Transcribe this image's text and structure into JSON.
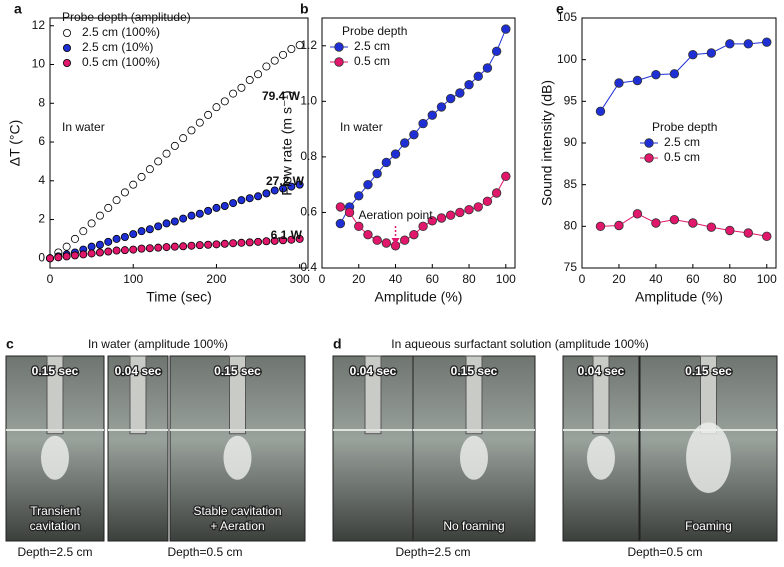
{
  "chart_data": [
    {
      "type": "scatter",
      "label": "a",
      "xlabel": "Time (sec)",
      "ylabel": "ΔT (°C)",
      "legend_title": "Probe depth (amplitude)",
      "legend": "upper left",
      "line": false,
      "xlim": [
        0,
        310
      ],
      "ylim": [
        -0.5,
        12.4
      ],
      "xticks": [
        0,
        100,
        200,
        300
      ],
      "yticks": [
        0,
        2,
        4,
        6,
        8,
        10,
        12
      ],
      "annotations": [
        "In water",
        "79.4 W",
        "27.2 W",
        "6.1 W"
      ],
      "x": [
        0,
        10,
        20,
        30,
        40,
        50,
        60,
        70,
        80,
        90,
        100,
        110,
        120,
        130,
        140,
        150,
        160,
        170,
        180,
        190,
        200,
        210,
        220,
        230,
        240,
        250,
        260,
        270,
        280,
        290,
        300
      ],
      "series": [
        {
          "name": "2.5 cm (100%)",
          "color": "#000000",
          "fill": "#ffffff",
          "values": [
            0,
            0.3,
            0.6,
            1.0,
            1.4,
            1.8,
            2.2,
            2.6,
            3.0,
            3.4,
            3.8,
            4.2,
            4.6,
            5.0,
            5.4,
            5.8,
            6.2,
            6.6,
            7.0,
            7.4,
            7.8,
            8.1,
            8.5,
            8.8,
            9.2,
            9.5,
            9.9,
            10.2,
            10.5,
            10.8,
            11.0
          ]
        },
        {
          "name": "2.5 cm (10%)",
          "color": "#000000",
          "fill": "#1f2fd6",
          "values": [
            0,
            0.1,
            0.2,
            0.3,
            0.45,
            0.6,
            0.7,
            0.85,
            1.0,
            1.1,
            1.25,
            1.4,
            1.5,
            1.65,
            1.8,
            1.9,
            2.05,
            2.2,
            2.3,
            2.45,
            2.6,
            2.7,
            2.85,
            3.0,
            3.1,
            3.2,
            3.35,
            3.5,
            3.6,
            3.7,
            3.8
          ]
        },
        {
          "name": "0.5 cm (100%)",
          "color": "#000000",
          "fill": "#e0176a",
          "values": [
            0,
            0.05,
            0.1,
            0.15,
            0.2,
            0.25,
            0.3,
            0.35,
            0.4,
            0.42,
            0.45,
            0.5,
            0.52,
            0.55,
            0.58,
            0.6,
            0.62,
            0.65,
            0.68,
            0.7,
            0.72,
            0.75,
            0.78,
            0.8,
            0.82,
            0.85,
            0.88,
            0.9,
            0.93,
            0.96,
            1.0
          ]
        }
      ]
    },
    {
      "type": "line",
      "label": "b",
      "xlabel": "Amplitude (%)",
      "ylabel": "Flow rate (m s⁻¹)",
      "legend_title": "Probe depth",
      "legend": "upper left",
      "line": true,
      "xlim": [
        0,
        105
      ],
      "ylim": [
        0.4,
        1.3
      ],
      "xticks": [
        0,
        20,
        40,
        60,
        80,
        100
      ],
      "yticks": [
        0.4,
        0.6,
        0.8,
        {
          "value": 1,
          "label": "1.0"
        },
        1.2
      ],
      "annotations": [
        "In water",
        "Aeration point"
      ],
      "x": [
        10,
        15,
        20,
        25,
        30,
        35,
        40,
        45,
        50,
        55,
        60,
        65,
        70,
        75,
        80,
        85,
        90,
        95,
        100
      ],
      "series": [
        {
          "name": "2.5 cm",
          "color": "#1f2fd6",
          "fill": "#1f2fd6",
          "values": [
            0.56,
            0.62,
            0.66,
            0.7,
            0.74,
            0.78,
            0.81,
            0.85,
            0.88,
            0.92,
            0.95,
            0.98,
            1.01,
            1.03,
            1.06,
            1.09,
            1.12,
            1.18,
            1.26
          ]
        },
        {
          "name": "0.5 cm",
          "color": "#e0176a",
          "fill": "#e0176a",
          "values": [
            0.62,
            0.6,
            0.55,
            0.52,
            0.5,
            0.49,
            0.48,
            0.5,
            0.52,
            0.55,
            0.57,
            0.58,
            0.59,
            0.6,
            0.61,
            0.62,
            0.64,
            0.67,
            0.73
          ]
        }
      ]
    },
    {
      "type": "line",
      "label": "e",
      "xlabel": "Amplitude (%)",
      "ylabel": "Sound intensity (dB)",
      "legend_title": "Probe depth",
      "legend": "center right",
      "line": true,
      "xlim": [
        0,
        105
      ],
      "ylim": [
        75,
        105
      ],
      "xticks": [
        0,
        20,
        40,
        60,
        80,
        100
      ],
      "yticks": [
        75,
        80,
        85,
        90,
        95,
        100,
        105
      ],
      "annotations": [],
      "x": [
        10,
        20,
        30,
        40,
        50,
        60,
        70,
        80,
        90,
        100
      ],
      "series": [
        {
          "name": "2.5 cm",
          "color": "#1f2fd6",
          "fill": "#1f2fd6",
          "values": [
            93.8,
            97.2,
            97.5,
            98.2,
            98.3,
            100.6,
            100.8,
            101.9,
            101.9,
            102.1
          ]
        },
        {
          "name": "0.5 cm",
          "color": "#e0176a",
          "fill": "#e0176a",
          "values": [
            80.0,
            80.1,
            81.5,
            80.4,
            80.8,
            80.4,
            79.9,
            79.5,
            79.2,
            78.8
          ]
        }
      ]
    }
  ],
  "photo_panels": [
    {
      "label": "c",
      "title": "In water (amplitude 100%)",
      "frames": [
        {
          "time": "0.15 sec",
          "caption": [
            "Transient",
            "cavitation"
          ]
        },
        {
          "time": "0.04 sec"
        },
        {
          "time": "0.15 sec",
          "caption": [
            "Stable cavitation",
            "+ Aeration"
          ]
        }
      ],
      "depths": [
        "Depth=2.5 cm",
        "Depth=0.5 cm"
      ]
    },
    {
      "label": "d",
      "title": "In aqueous surfactant solution (amplitude 100%)",
      "frames": [
        {
          "time": "0.04 sec"
        },
        {
          "time": "0.15 sec",
          "caption": [
            "No foaming"
          ]
        },
        {
          "time": "0.04 sec"
        },
        {
          "time": "0.15 sec",
          "caption": [
            "Foaming"
          ]
        }
      ],
      "depths": [
        "Depth=2.5 cm",
        "Depth=0.5 cm"
      ]
    }
  ]
}
